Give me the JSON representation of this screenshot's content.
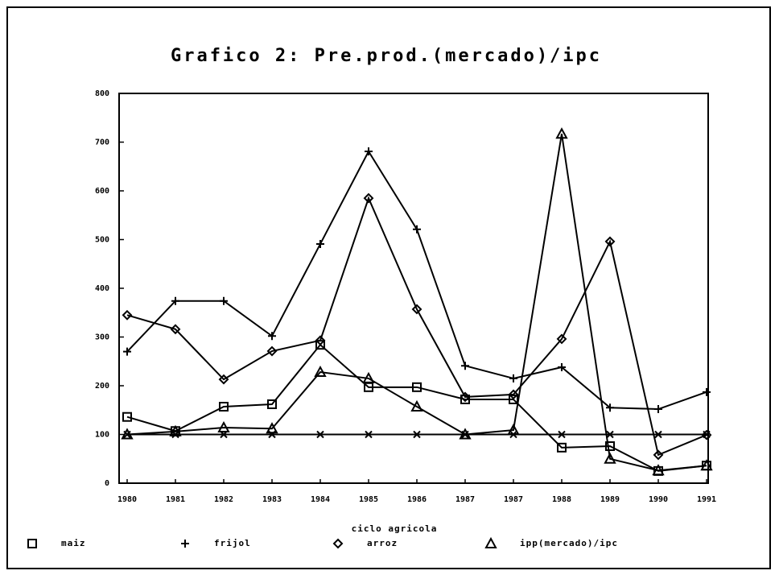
{
  "chart_data": {
    "type": "line",
    "title": "Grafico 2: Pre.prod.(mercado)/ipc",
    "x_label": "ciclo agricola",
    "categories": [
      "1980",
      "1981",
      "1982",
      "1983",
      "1984",
      "1985",
      "1986",
      "1987",
      "1987",
      "1988",
      "1989",
      "1990",
      "1991"
    ],
    "series": [
      {
        "name": "maiz",
        "marker": "square",
        "color": "#000",
        "values": [
          136,
          107,
          157,
          162,
          284,
          197,
          197,
          172,
          172,
          73,
          76,
          25,
          36
        ]
      },
      {
        "name": "frijol",
        "marker": "plus",
        "color": "#000",
        "values": [
          270,
          374,
          374,
          302,
          491,
          681,
          521,
          241,
          215,
          238,
          155,
          152,
          187
        ]
      },
      {
        "name": "arroz",
        "marker": "diamond",
        "color": "#000",
        "values": [
          345,
          316,
          213,
          271,
          293,
          585,
          357,
          177,
          182,
          296,
          496,
          58,
          99
        ]
      },
      {
        "name": "ipp(mercado)/ipc",
        "marker": "triangle",
        "color": "#000",
        "values": [
          100,
          106,
          114,
          112,
          228,
          215,
          157,
          100,
          109,
          717,
          50,
          26,
          36
        ]
      },
      {
        "marker": "x",
        "color": "#000",
        "values": [
          100,
          100,
          100,
          100,
          100,
          100,
          100,
          100,
          100,
          100,
          100,
          100,
          100
        ]
      }
    ],
    "ylim": [
      0,
      800
    ],
    "yticks": [
      0,
      100,
      200,
      300,
      400,
      500,
      600,
      700,
      800
    ]
  }
}
